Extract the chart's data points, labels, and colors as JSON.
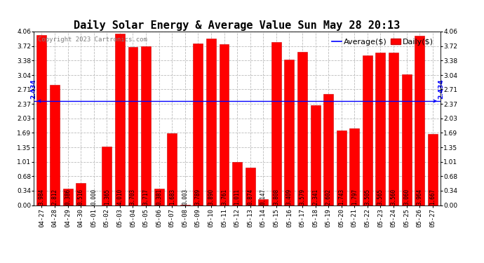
{
  "title": "Daily Solar Energy & Average Value Sun May 28 20:13",
  "copyright": "Copyright 2023 Cartronics.com",
  "legend_average": "Average($)",
  "legend_daily": "Daily($)",
  "average_value": 2.434,
  "categories": [
    "04-27",
    "04-28",
    "04-29",
    "04-30",
    "05-01",
    "05-02",
    "05-03",
    "05-04",
    "05-05",
    "05-06",
    "05-07",
    "05-08",
    "05-09",
    "05-10",
    "05-11",
    "05-12",
    "05-13",
    "05-14",
    "05-15",
    "05-16",
    "05-17",
    "05-18",
    "05-19",
    "05-20",
    "05-21",
    "05-22",
    "05-23",
    "05-24",
    "05-25",
    "05-26",
    "05-27"
  ],
  "values": [
    3.984,
    2.812,
    0.386,
    0.516,
    0.0,
    1.365,
    4.01,
    3.703,
    3.717,
    0.381,
    1.683,
    0.003,
    3.789,
    3.89,
    3.761,
    1.011,
    0.874,
    0.147,
    3.808,
    3.409,
    3.579,
    2.341,
    2.602,
    1.743,
    1.797,
    3.505,
    3.565,
    3.56,
    3.06,
    3.964,
    1.667
  ],
  "bar_color": "#ff0000",
  "bar_edge_color": "#cc0000",
  "average_line_color": "#0000ff",
  "background_color": "#ffffff",
  "grid_color": "#bbbbbb",
  "ylim": [
    0,
    4.06
  ],
  "yticks": [
    0.0,
    0.34,
    0.68,
    1.01,
    1.35,
    1.69,
    2.03,
    2.37,
    2.71,
    3.04,
    3.38,
    3.72,
    4.06
  ],
  "title_fontsize": 11,
  "copyright_fontsize": 6.5,
  "label_fontsize": 5.5,
  "tick_fontsize": 6.5,
  "avg_label_fontsize": 6.5,
  "legend_fontsize": 8
}
